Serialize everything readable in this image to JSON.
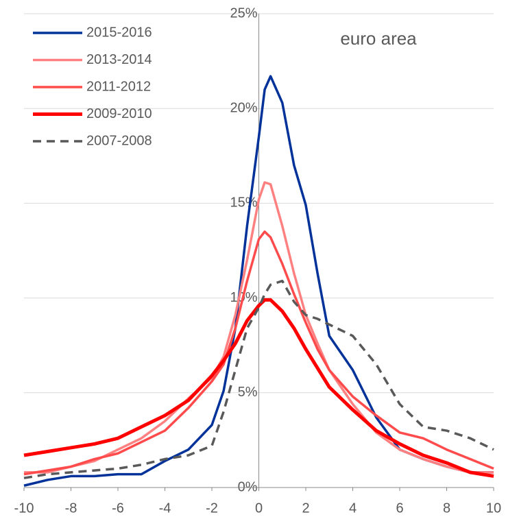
{
  "chart_data": {
    "type": "line",
    "annotation": "euro area",
    "x": [
      -10,
      -9,
      -8,
      -7,
      -6,
      -5,
      -4,
      -3,
      -2,
      -1.5,
      -1,
      -0.5,
      0,
      0.25,
      0.5,
      1,
      1.5,
      2,
      2.5,
      3,
      4,
      5,
      6,
      7,
      8,
      9,
      10
    ],
    "series": [
      {
        "name": "2015-2016",
        "color": "#003299",
        "width": 3.5,
        "dashed": false,
        "values": [
          0.1,
          0.4,
          0.6,
          0.6,
          0.7,
          0.7,
          1.4,
          2.0,
          3.3,
          5.1,
          8.4,
          13.8,
          18.5,
          21.0,
          21.7,
          20.3,
          17.0,
          14.9,
          11.3,
          8.0,
          6.2,
          3.7,
          2.0,
          1.5,
          1.1,
          0.8,
          0.8
        ]
      },
      {
        "name": "2013-2014",
        "color": "#ff8080",
        "width": 3.5,
        "dashed": false,
        "values": [
          0.8,
          0.8,
          1.1,
          1.4,
          2.0,
          2.6,
          3.5,
          4.7,
          5.8,
          6.9,
          9.1,
          12.0,
          15.2,
          16.1,
          16.0,
          13.8,
          11.3,
          9.1,
          7.6,
          6.2,
          4.4,
          2.9,
          2.0,
          1.5,
          1.1,
          0.8,
          0.8
        ]
      },
      {
        "name": "2011-2012",
        "color": "#ff4b4b",
        "width": 3.5,
        "dashed": false,
        "values": [
          0.7,
          0.9,
          1.1,
          1.5,
          1.8,
          2.4,
          3.0,
          4.2,
          5.6,
          6.5,
          8.4,
          10.9,
          13.1,
          13.5,
          13.2,
          11.8,
          10.2,
          8.7,
          7.3,
          6.2,
          4.8,
          3.8,
          2.9,
          2.6,
          2.0,
          1.5,
          1.0
        ]
      },
      {
        "name": "2009-2010",
        "color": "#ff0000",
        "width": 5,
        "dashed": false,
        "values": [
          1.7,
          1.9,
          2.1,
          2.3,
          2.6,
          3.2,
          3.8,
          4.6,
          5.9,
          6.7,
          7.6,
          8.8,
          9.6,
          9.9,
          9.9,
          9.3,
          8.4,
          7.3,
          6.3,
          5.3,
          4.1,
          3.0,
          2.3,
          1.7,
          1.3,
          0.8,
          0.6
        ]
      },
      {
        "name": "2007-2008",
        "color": "#595959",
        "width": 3.5,
        "dashed": true,
        "values": [
          0.5,
          0.7,
          0.8,
          0.9,
          1.0,
          1.2,
          1.5,
          1.7,
          2.2,
          4.0,
          6.2,
          8.4,
          9.5,
          10.2,
          10.7,
          10.9,
          9.8,
          9.1,
          8.9,
          8.6,
          8.0,
          6.5,
          4.4,
          3.2,
          3.0,
          2.6,
          2.0
        ]
      }
    ],
    "xlim": [
      -10,
      10
    ],
    "xticks": [
      -10,
      -8,
      -6,
      -4,
      -2,
      0,
      2,
      4,
      6,
      8,
      10
    ],
    "ylim": [
      0,
      25
    ],
    "yticks": [
      {
        "value": 0,
        "label": "0%"
      },
      {
        "value": 5,
        "label": "5%"
      },
      {
        "value": 10,
        "label": "10%"
      },
      {
        "value": 15,
        "label": "15%"
      },
      {
        "value": 20,
        "label": "20%"
      },
      {
        "value": 25,
        "label": "25%"
      }
    ],
    "grid": true,
    "legend": "top-left"
  }
}
